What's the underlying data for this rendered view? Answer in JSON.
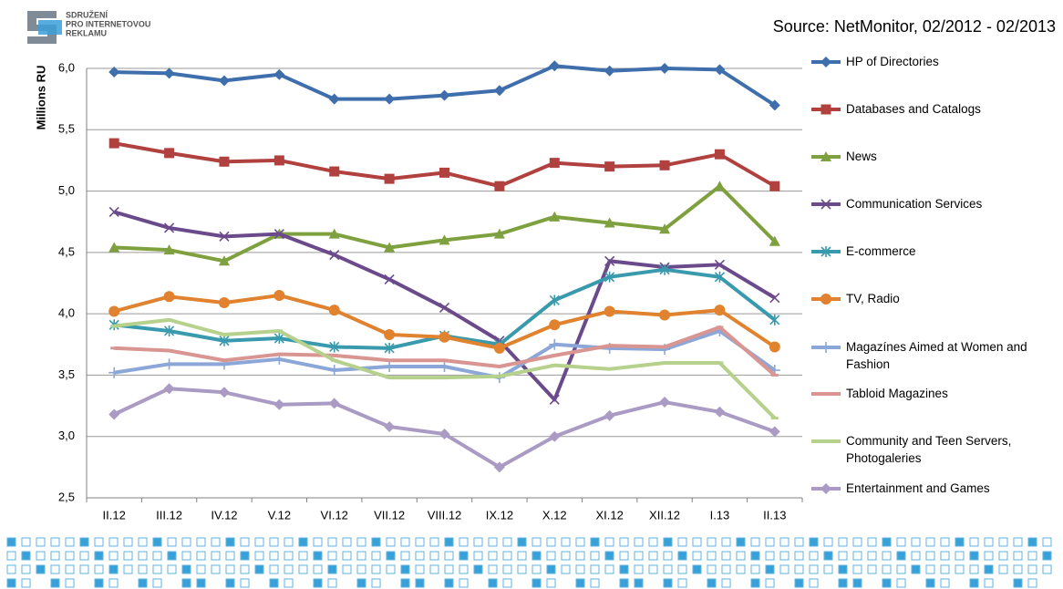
{
  "logo": [
    "SDRUŽENÍ",
    "PRO INTERNETOVOU",
    "REKLAMU"
  ],
  "source": "Source:  NetMonitor, 02/2012 - 02/2013",
  "chart_data": {
    "type": "line",
    "y_label": "Millions RU",
    "categories": [
      "II.12",
      "III.12",
      "IV.12",
      "V.12",
      "VI.12",
      "VII.12",
      "VIII.12",
      "IX.12",
      "X.12",
      "XI.12",
      "XII.12",
      "I.13",
      "II.13"
    ],
    "ylim": [
      2.5,
      6.0
    ],
    "yticks": [
      {
        "value": 2.5,
        "label": "2,5"
      },
      {
        "value": 3.0,
        "label": "3,0"
      },
      {
        "value": 3.5,
        "label": "3,5"
      },
      {
        "value": 4.0,
        "label": "4,0"
      },
      {
        "value": 4.5,
        "label": "4,5"
      },
      {
        "value": 5.0,
        "label": "5,0"
      },
      {
        "value": 5.5,
        "label": "5,5"
      },
      {
        "value": 6.0,
        "label": "6,0"
      }
    ],
    "grid": true,
    "series": [
      {
        "name": "HP of Directories",
        "color": "#3e6eac",
        "marker": "diamond",
        "values": [
          5.97,
          5.96,
          5.9,
          5.95,
          5.75,
          5.75,
          5.78,
          5.82,
          6.02,
          5.98,
          6.0,
          5.99,
          5.7
        ]
      },
      {
        "name": "Databases and Catalogs",
        "color": "#b0413e",
        "marker": "square",
        "values": [
          5.39,
          5.31,
          5.24,
          5.25,
          5.16,
          5.1,
          5.15,
          5.04,
          5.23,
          5.2,
          5.21,
          5.3,
          5.04
        ]
      },
      {
        "name": "News",
        "color": "#7ea03e",
        "marker": "triangle",
        "values": [
          4.54,
          4.52,
          4.43,
          4.65,
          4.65,
          4.54,
          4.6,
          4.65,
          4.79,
          4.74,
          4.69,
          5.04,
          4.59
        ]
      },
      {
        "name": "Communication Services",
        "color": "#6b4a8c",
        "marker": "x",
        "values": [
          4.83,
          4.7,
          4.63,
          4.65,
          4.48,
          4.28,
          4.05,
          3.78,
          3.3,
          4.43,
          4.38,
          4.4,
          4.13
        ]
      },
      {
        "name": "E-commerce",
        "color": "#3a9aad",
        "marker": "asterisk",
        "values": [
          3.91,
          3.86,
          3.78,
          3.8,
          3.73,
          3.72,
          3.82,
          3.75,
          4.11,
          4.3,
          4.36,
          4.3,
          3.95
        ]
      },
      {
        "name": "TV, Radio",
        "color": "#e0822e",
        "marker": "circle",
        "values": [
          4.02,
          4.14,
          4.09,
          4.15,
          4.03,
          3.83,
          3.81,
          3.72,
          3.91,
          4.02,
          3.99,
          4.03,
          3.73
        ]
      },
      {
        "name": "Magazínes Aimed at Women and Fashion",
        "color": "#8ba7d8",
        "marker": "plus",
        "values": [
          3.52,
          3.59,
          3.59,
          3.63,
          3.54,
          3.57,
          3.57,
          3.48,
          3.75,
          3.72,
          3.71,
          3.86,
          3.54
        ]
      },
      {
        "name": "Tabloid Magazines",
        "color": "#d99591",
        "marker": "dash",
        "values": [
          3.72,
          3.7,
          3.62,
          3.67,
          3.66,
          3.62,
          3.62,
          3.57,
          3.66,
          3.74,
          3.73,
          3.89,
          3.5
        ]
      },
      {
        "name": "Community and Teen Servers, Photogaleries",
        "color": "#b5d18c",
        "marker": "dash",
        "values": [
          3.9,
          3.95,
          3.83,
          3.86,
          3.62,
          3.48,
          3.48,
          3.49,
          3.58,
          3.55,
          3.6,
          3.6,
          3.15
        ]
      },
      {
        "name": "Entertainment and Games",
        "color": "#a99bc3",
        "marker": "diamond",
        "values": [
          3.18,
          3.39,
          3.36,
          3.26,
          3.27,
          3.08,
          3.02,
          2.75,
          3.0,
          3.17,
          3.28,
          3.2,
          3.04
        ]
      }
    ]
  }
}
